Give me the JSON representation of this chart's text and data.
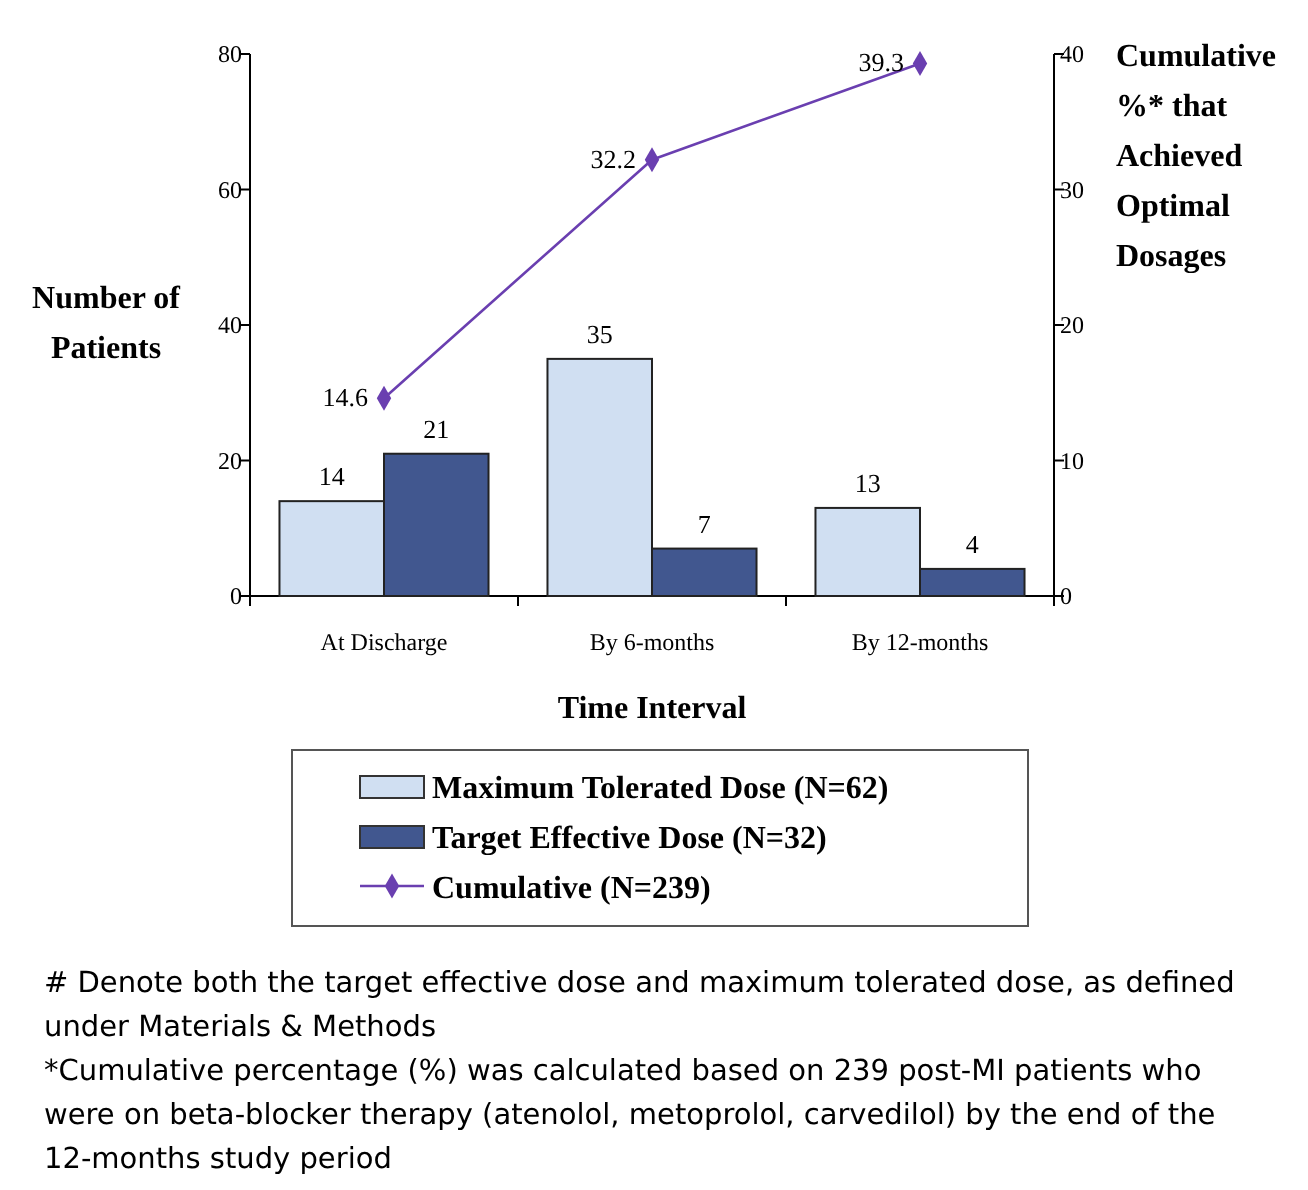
{
  "chart_data": {
    "type": "bar",
    "categories": [
      "At Discharge",
      "By 6-months",
      "By 12-months"
    ],
    "xlabel": "Time Interval",
    "ylabel": "Number of Patients",
    "y2label": "Cumulative %* that Achieved Optimal Dosages",
    "series": [
      {
        "name": "Maximum Tolerated Dose (N=62)",
        "color": "#d0dff2",
        "values": [
          14,
          35,
          13
        ]
      },
      {
        "name": "Target Effective Dose (N=32)",
        "color": "#41578f",
        "values": [
          21,
          7,
          4
        ]
      },
      {
        "name": "Cumulative (N=239)",
        "type": "line",
        "axis": "y2",
        "color": "#6a3fb0",
        "values": [
          14.6,
          32.2,
          39.3
        ],
        "marker": "diamond"
      }
    ],
    "ylim": [
      0,
      80
    ],
    "yticks": [
      0,
      20,
      40,
      60,
      80
    ],
    "y2lim": [
      0,
      40
    ],
    "y2ticks": [
      0,
      10,
      20,
      30,
      40
    ],
    "data_labels": true,
    "legend": "bottom",
    "grid": false,
    "annotations": [
      "# Denote both the target effective dose and maximum tolerated dose, as defined under Materials & Methods",
      "*Cumulative percentage (%) was calculated based on 239 post-MI patients who were on beta-blocker therapy (atenolol, metoprolol, carvedilol) by the end of the 12-months study period"
    ]
  }
}
